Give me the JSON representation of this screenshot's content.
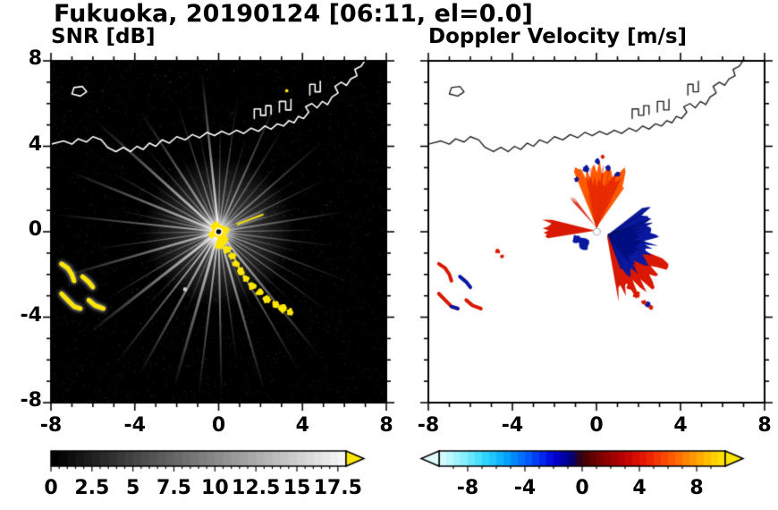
{
  "figure_title": "Fukuoka, 20190124 [06:11, el=0.0]",
  "chart_data": [
    {
      "type": "heatmap",
      "title": "SNR [dB]",
      "xlim": [
        -8,
        8
      ],
      "ylim": [
        -8,
        8
      ],
      "xtick_values": [
        -8,
        -4,
        0,
        4,
        8
      ],
      "xtick_labels": [
        "-8",
        "-4",
        "0",
        "4",
        "8"
      ],
      "ytick_values": [
        8,
        4,
        0,
        -4,
        -8
      ],
      "ytick_labels": [
        "8",
        "4",
        "0",
        "-4",
        "-8"
      ],
      "background": "#000000",
      "coast_color": "#ffffff",
      "echo_color": "#ffe600",
      "radar_center": [
        0,
        0
      ],
      "colorbar": {
        "range": [
          0,
          18
        ],
        "tick_values": [
          0,
          2.5,
          5,
          7.5,
          10,
          12.5,
          15,
          17.5
        ],
        "tick_labels": [
          "0",
          "2.5",
          "5",
          "7.5",
          "10",
          "12.5",
          "15",
          "17.5"
        ],
        "minor_step": 0.5,
        "major_step": 2.5,
        "type": "grayscale",
        "right_arrow_color": "#ffe600"
      },
      "streaks": [
        [
          96,
          7.6,
          0.95,
          2.5
        ],
        [
          138,
          7.8,
          0.85,
          3
        ],
        [
          158,
          7.7,
          0.8,
          2.5
        ],
        [
          174,
          7.8,
          0.7,
          2
        ],
        [
          196,
          7.9,
          0.75,
          2.5
        ],
        [
          218,
          7.9,
          0.85,
          3
        ],
        [
          232,
          7.9,
          0.8,
          2
        ],
        [
          241,
          7.9,
          0.8,
          2.5
        ],
        [
          254,
          7.8,
          0.85,
          3
        ],
        [
          263,
          7.9,
          0.8,
          2
        ],
        [
          271,
          7.8,
          0.75,
          2
        ],
        [
          286,
          7.9,
          0.8,
          2.5
        ],
        [
          300,
          7.6,
          0.7,
          2
        ],
        [
          309,
          7.5,
          0.75,
          2.5
        ],
        [
          66,
          7.2,
          0.6,
          2
        ],
        [
          41,
          6.6,
          0.55,
          2
        ],
        [
          9,
          6.2,
          0.55,
          2
        ],
        [
          123,
          6.8,
          0.7,
          2.5
        ],
        [
          101,
          5.0,
          0.5,
          1.5
        ],
        [
          108,
          6.5,
          0.6,
          1.5
        ],
        [
          116,
          4.0,
          0.45,
          1.5
        ],
        [
          131,
          5.5,
          0.5,
          1.5
        ],
        [
          144,
          4.5,
          0.4,
          1.5
        ],
        [
          151,
          6.0,
          0.55,
          1.5
        ],
        [
          163,
          3.5,
          0.4,
          1.5
        ],
        [
          168,
          5.0,
          0.5,
          1.5
        ],
        [
          181,
          4.2,
          0.4,
          1.5
        ],
        [
          188,
          6.0,
          0.5,
          1.5
        ],
        [
          203,
          4.0,
          0.4,
          1.5
        ],
        [
          211,
          6.3,
          0.55,
          1.5
        ],
        [
          226,
          5.0,
          0.5,
          1.5
        ],
        [
          248,
          4.4,
          0.45,
          1.5
        ],
        [
          278,
          6.4,
          0.55,
          1.5
        ],
        [
          293,
          4.2,
          0.4,
          1.5
        ],
        [
          316,
          4.8,
          0.45,
          1.5
        ],
        [
          324,
          6.5,
          0.55,
          1.5
        ],
        [
          331,
          5.2,
          0.45,
          1.5
        ],
        [
          339,
          6.8,
          0.55,
          1.5
        ],
        [
          346,
          4.0,
          0.4,
          1.5
        ],
        [
          353,
          5.6,
          0.5,
          1.5
        ],
        [
          1,
          4.8,
          0.45,
          1.5
        ],
        [
          17,
          4.2,
          0.4,
          1.5
        ],
        [
          26,
          5.8,
          0.5,
          1.5
        ],
        [
          34,
          4.6,
          0.42,
          1.5
        ],
        [
          49,
          4.4,
          0.4,
          1.5
        ],
        [
          58,
          6.0,
          0.5,
          1.5
        ],
        [
          74,
          4.8,
          0.45,
          1.5
        ],
        [
          82,
          6.4,
          0.55,
          1.5
        ],
        [
          89,
          5.4,
          0.5,
          1.5
        ]
      ],
      "center_blobs": [
        [
          0,
          0,
          0.38
        ],
        [
          0.18,
          -0.3,
          0.3
        ],
        [
          -0.12,
          0.22,
          0.26
        ],
        [
          0.32,
          0.08,
          0.2
        ],
        [
          0.05,
          -0.62,
          0.22
        ],
        [
          -0.3,
          -0.15,
          0.18
        ]
      ],
      "trail_blobs": [
        [
          0.15,
          -0.5,
          0.24
        ],
        [
          0.4,
          -0.85,
          0.2
        ],
        [
          0.65,
          -1.15,
          0.18
        ],
        [
          0.82,
          -1.5,
          0.17
        ],
        [
          1.05,
          -1.85,
          0.2
        ],
        [
          1.3,
          -2.2,
          0.18
        ],
        [
          1.6,
          -2.55,
          0.2
        ],
        [
          1.95,
          -2.85,
          0.18
        ],
        [
          2.3,
          -3.15,
          0.2
        ],
        [
          2.7,
          -3.4,
          0.18
        ],
        [
          3.05,
          -3.6,
          0.22
        ],
        [
          3.4,
          -3.75,
          0.18
        ]
      ],
      "arc_echoes": [
        {
          "points": [
            [
              -7.5,
              -1.5
            ],
            [
              -7.2,
              -1.7
            ],
            [
              -7.0,
              -2.0
            ],
            [
              -6.9,
              -2.3
            ]
          ],
          "color": "#ffe600",
          "width": 5
        },
        {
          "points": [
            [
              -6.5,
              -2.1
            ],
            [
              -6.2,
              -2.35
            ],
            [
              -6.0,
              -2.6
            ]
          ],
          "color": "#ffe600",
          "width": 5
        },
        {
          "points": [
            [
              -7.5,
              -2.9
            ],
            [
              -7.2,
              -3.2
            ],
            [
              -6.9,
              -3.5
            ],
            [
              -6.6,
              -3.6
            ]
          ],
          "color": "#ffe600",
          "width": 5
        },
        {
          "points": [
            [
              -6.2,
              -3.2
            ],
            [
              -5.9,
              -3.45
            ],
            [
              -5.5,
              -3.6
            ]
          ],
          "color": "#ffe600",
          "width": 5
        },
        {
          "points": [
            [
              0.9,
              0.35
            ],
            [
              2.1,
              0.8
            ]
          ],
          "color": "#ffe600",
          "width": 2
        }
      ],
      "specks": [
        {
          "x": -1.6,
          "y": -2.7,
          "r": 0.1,
          "color": "#cccccc"
        },
        {
          "x": 3.25,
          "y": 6.6,
          "r": 0.08,
          "color": "#ffe600"
        }
      ]
    },
    {
      "type": "heatmap",
      "title": "Doppler Velocity [m/s]",
      "xlim": [
        -8,
        8
      ],
      "ylim": [
        -8,
        8
      ],
      "xtick_values": [
        -8,
        -4,
        0,
        4,
        8
      ],
      "xtick_labels": [
        "-8",
        "-4",
        "0",
        "4",
        "8"
      ],
      "ytick_values": [
        8,
        4,
        0,
        -4,
        -8
      ],
      "ytick_labels": [
        "8",
        "4",
        "0",
        "-4",
        "-8"
      ],
      "background": "#ffffff",
      "coast_color": "#222222",
      "colorbar": {
        "range": [
          -10,
          10
        ],
        "tick_values": [
          -8,
          -4,
          0,
          4,
          8
        ],
        "tick_labels": [
          "-8",
          "-4",
          "0",
          "4",
          "8"
        ],
        "minor_step": 1,
        "major_step": 4,
        "stops": [
          [
            0,
            "#e0fdff"
          ],
          [
            0.08,
            "#8ff0ff"
          ],
          [
            0.16,
            "#2fd8ff"
          ],
          [
            0.24,
            "#00a0ff"
          ],
          [
            0.32,
            "#0050ff"
          ],
          [
            0.4,
            "#0000d8"
          ],
          [
            0.46,
            "#000080"
          ],
          [
            0.5,
            "#3c0000"
          ],
          [
            0.56,
            "#7a0000"
          ],
          [
            0.64,
            "#b80000"
          ],
          [
            0.72,
            "#e81800"
          ],
          [
            0.8,
            "#ff5000"
          ],
          [
            0.88,
            "#ff9000"
          ],
          [
            0.95,
            "#ffc800"
          ],
          [
            1,
            "#ffe600"
          ]
        ],
        "left_arrow_color": "#e0fdff",
        "right_arrow_color": "#ffe600"
      },
      "fans": [
        {
          "cx": 0.5,
          "cy": -0.2,
          "a0": -80,
          "a1": -22,
          "r": 3.3,
          "color": "#d81800"
        },
        {
          "cx": 0.0,
          "cy": 0.2,
          "a0": 55,
          "a1": 112,
          "r": 3.1,
          "color": "#ff5a00",
          "texture": "#c01000"
        },
        {
          "cx": 0.0,
          "cy": 0.2,
          "a0": 63,
          "a1": 102,
          "r": 2.6,
          "color": "#e82800",
          "alpha": 0.9
        },
        {
          "cx": 0.55,
          "cy": -0.15,
          "a0": -70,
          "a1": 38,
          "r": 2.35,
          "color": "#0a18a0",
          "texture": "#000d66"
        },
        {
          "cx": 0.62,
          "cy": -0.3,
          "a0": -52,
          "a1": 22,
          "r": 1.55,
          "color": "#000d80"
        },
        {
          "cx": -0.05,
          "cy": 0.05,
          "a0": 166,
          "a1": 189,
          "r": 2.55,
          "color": "#d81800"
        },
        {
          "cx": 0.0,
          "cy": 0.2,
          "a0": 127,
          "a1": 133,
          "r": 1.9,
          "color": "#d81800",
          "alpha": 0.85
        }
      ],
      "blobs": [
        {
          "x": -0.5,
          "y": 2.95,
          "r": 0.17,
          "color": "#0a18a0"
        },
        {
          "x": 0.05,
          "y": 3.3,
          "r": 0.14,
          "color": "#0a18a0"
        },
        {
          "x": 0.55,
          "y": 3.0,
          "r": 0.14,
          "color": "#0a18a0"
        },
        {
          "x": -0.95,
          "y": 2.45,
          "r": 0.12,
          "color": "#0a18a0"
        },
        {
          "x": 1.0,
          "y": 2.7,
          "r": 0.13,
          "color": "#0a18a0"
        },
        {
          "x": -0.6,
          "y": -0.55,
          "r": 0.3,
          "color": "#0a18a0"
        },
        {
          "x": -0.95,
          "y": -0.35,
          "r": 0.2,
          "color": "#0a18a0"
        },
        {
          "x": 2.45,
          "y": -3.4,
          "r": 0.14,
          "color": "#0a18a0"
        },
        {
          "x": 1.9,
          "y": -2.95,
          "r": 0.17,
          "color": "#d81800"
        },
        {
          "x": 2.25,
          "y": -3.3,
          "r": 0.13,
          "color": "#d81800"
        },
        {
          "x": 1.55,
          "y": -2.6,
          "r": 0.12,
          "color": "#d81800"
        },
        {
          "x": 2.6,
          "y": -3.55,
          "r": 0.12,
          "color": "#d81800"
        },
        {
          "x": -4.7,
          "y": -0.9,
          "r": 0.12,
          "color": "#d81800"
        },
        {
          "x": -4.5,
          "y": -1.15,
          "r": 0.1,
          "color": "#d81800"
        },
        {
          "x": 0.3,
          "y": 3.5,
          "r": 0.1,
          "color": "#d81800"
        }
      ],
      "arc_echoes": [
        {
          "points": [
            [
              -7.5,
              -1.5
            ],
            [
              -7.2,
              -1.7
            ],
            [
              -7.0,
              -2.0
            ],
            [
              -6.9,
              -2.3
            ]
          ],
          "color": "#d81800",
          "width": 4
        },
        {
          "points": [
            [
              -6.5,
              -2.1
            ],
            [
              -6.2,
              -2.35
            ],
            [
              -6.0,
              -2.6
            ]
          ],
          "color": "#0a18a0",
          "width": 4
        },
        {
          "points": [
            [
              -7.5,
              -2.9
            ],
            [
              -7.2,
              -3.2
            ],
            [
              -6.9,
              -3.5
            ],
            [
              -6.6,
              -3.6
            ]
          ],
          "color": "#d81800",
          "width": 4
        },
        {
          "points": [
            [
              -6.9,
              -3.5
            ],
            [
              -6.6,
              -3.6
            ]
          ],
          "color": "#0a18a0",
          "width": 4
        },
        {
          "points": [
            [
              -6.2,
              -3.2
            ],
            [
              -5.9,
              -3.45
            ],
            [
              -5.5,
              -3.6
            ]
          ],
          "color": "#d81800",
          "width": 4
        }
      ],
      "center_dot": {
        "x": 0.02,
        "y": 0.0,
        "r": 0.17,
        "color": "#ffffff",
        "ring": "#aaaaaa"
      }
    }
  ],
  "coastline": {
    "main": [
      [
        -8,
        4.1
      ],
      [
        -7.4,
        4.25
      ],
      [
        -7.0,
        4.1
      ],
      [
        -6.7,
        4.35
      ],
      [
        -6.3,
        4.2
      ],
      [
        -6.0,
        4.45
      ],
      [
        -5.6,
        4.3
      ],
      [
        -5.3,
        3.95
      ],
      [
        -4.9,
        3.75
      ],
      [
        -4.55,
        3.95
      ],
      [
        -4.2,
        3.75
      ],
      [
        -3.9,
        4.0
      ],
      [
        -3.6,
        3.85
      ],
      [
        -3.3,
        4.15
      ],
      [
        -3.0,
        4.0
      ],
      [
        -2.7,
        4.3
      ],
      [
        -2.35,
        4.15
      ],
      [
        -2.0,
        4.45
      ],
      [
        -1.6,
        4.3
      ],
      [
        -1.25,
        4.55
      ],
      [
        -0.9,
        4.4
      ],
      [
        -0.55,
        4.65
      ],
      [
        -0.2,
        4.5
      ],
      [
        0.15,
        4.7
      ],
      [
        0.5,
        4.55
      ],
      [
        0.85,
        4.75
      ],
      [
        1.2,
        4.6
      ],
      [
        1.55,
        4.85
      ],
      [
        1.9,
        4.7
      ],
      [
        2.2,
        4.95
      ],
      [
        2.5,
        4.8
      ],
      [
        2.8,
        5.05
      ],
      [
        3.1,
        4.95
      ],
      [
        3.35,
        5.2
      ],
      [
        3.6,
        5.1
      ],
      [
        3.8,
        5.4
      ],
      [
        4.05,
        5.3
      ],
      [
        4.3,
        5.6
      ],
      [
        4.15,
        5.85
      ],
      [
        4.45,
        6.0
      ],
      [
        4.7,
        5.8
      ],
      [
        4.95,
        6.1
      ],
      [
        5.2,
        5.95
      ],
      [
        5.4,
        6.3
      ],
      [
        5.7,
        6.5
      ],
      [
        5.55,
        6.8
      ],
      [
        5.85,
        7.0
      ],
      [
        6.1,
        6.85
      ],
      [
        6.3,
        7.15
      ],
      [
        6.6,
        7.3
      ],
      [
        6.5,
        7.6
      ],
      [
        6.8,
        7.75
      ],
      [
        7.0,
        8.05
      ]
    ],
    "island": [
      [
        -7.0,
        6.45
      ],
      [
        -6.6,
        6.35
      ],
      [
        -6.3,
        6.55
      ],
      [
        -6.5,
        6.8
      ],
      [
        -6.9,
        6.75
      ]
    ],
    "structures": [
      [
        [
          1.7,
          5.3
        ],
        [
          1.7,
          5.75
        ],
        [
          2.0,
          5.75
        ],
        [
          2.0,
          5.45
        ],
        [
          2.25,
          5.45
        ],
        [
          2.25,
          5.9
        ],
        [
          2.5,
          5.9
        ],
        [
          2.5,
          5.5
        ]
      ],
      [
        [
          2.9,
          5.6
        ],
        [
          2.9,
          6.1
        ],
        [
          3.2,
          6.1
        ],
        [
          3.2,
          5.7
        ],
        [
          3.45,
          5.7
        ],
        [
          3.45,
          6.2
        ]
      ],
      [
        [
          4.35,
          6.4
        ],
        [
          4.35,
          6.9
        ],
        [
          4.6,
          6.9
        ],
        [
          4.6,
          6.55
        ],
        [
          4.85,
          6.55
        ],
        [
          4.85,
          7.05
        ]
      ]
    ]
  }
}
